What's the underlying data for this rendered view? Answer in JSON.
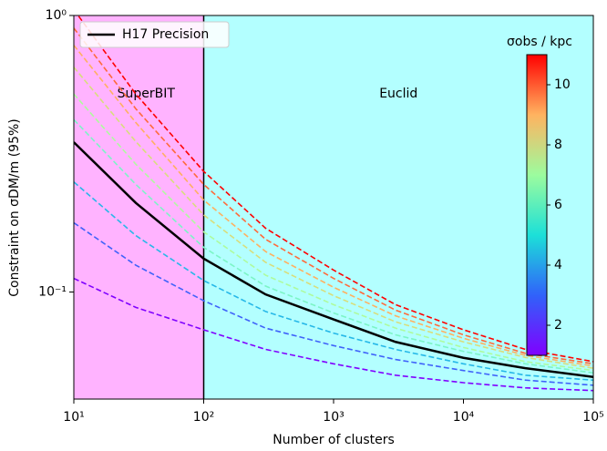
{
  "chart_data": {
    "type": "line",
    "xlabel": "Number of clusters",
    "ylabel": "Constraint on σDM/m (95%)",
    "x": [
      10,
      30,
      100,
      300,
      1000,
      3000,
      10000,
      30000,
      100000
    ],
    "xlog": true,
    "ylog": true,
    "xlim": [
      10,
      100000
    ],
    "ylim": [
      0.041,
      1
    ],
    "xticks": [
      {
        "value": 10,
        "label": "10¹"
      },
      {
        "value": 100,
        "label": "10²"
      },
      {
        "value": 1000,
        "label": "10³"
      },
      {
        "value": 10000,
        "label": "10⁴"
      },
      {
        "value": 100000,
        "label": "10⁵"
      }
    ],
    "yticks": [
      {
        "value": 0.1,
        "label": "10⁻¹"
      },
      {
        "value": 1,
        "label": "10⁰"
      }
    ],
    "regions": [
      {
        "label": "SuperBIT",
        "x": [
          10,
          100
        ],
        "color": "#ffb3ff"
      },
      {
        "label": "Euclid",
        "x": [
          100,
          100000
        ],
        "color": "#b3ffff"
      }
    ],
    "vline": 100,
    "legend": "upper left",
    "series": [
      {
        "color": "#8000ff",
        "style": "dashed",
        "values": [
          0.112,
          0.088,
          0.073,
          0.062,
          0.055,
          0.05,
          0.047,
          0.045,
          0.044
        ]
      },
      {
        "color": "#3f62fa",
        "style": "dashed",
        "values": [
          0.178,
          0.125,
          0.093,
          0.074,
          0.064,
          0.057,
          0.052,
          0.048,
          0.046
        ]
      },
      {
        "color": "#26b8e8",
        "style": "dashed",
        "values": [
          0.25,
          0.16,
          0.11,
          0.085,
          0.071,
          0.062,
          0.055,
          0.05,
          0.048
        ]
      },
      {
        "color": "#7cf5c6",
        "style": "dashed",
        "values": [
          0.42,
          0.245,
          0.145,
          0.105,
          0.084,
          0.07,
          0.061,
          0.055,
          0.051
        ]
      },
      {
        "color": "#aefb9e",
        "style": "dashed",
        "values": [
          0.52,
          0.29,
          0.165,
          0.115,
          0.09,
          0.074,
          0.063,
          0.056,
          0.052
        ]
      },
      {
        "color": "#d8de7c",
        "style": "dashed",
        "values": [
          0.65,
          0.35,
          0.19,
          0.128,
          0.097,
          0.078,
          0.066,
          0.058,
          0.053
        ]
      },
      {
        "color": "#ffb060",
        "style": "dashed",
        "values": [
          0.78,
          0.41,
          0.215,
          0.14,
          0.104,
          0.082,
          0.068,
          0.059,
          0.054
        ]
      },
      {
        "color": "#ff6a3a",
        "style": "dashed",
        "values": [
          0.9,
          0.46,
          0.245,
          0.155,
          0.112,
          0.086,
          0.07,
          0.06,
          0.055
        ]
      },
      {
        "color": "#ff0000",
        "style": "dashed",
        "values": [
          1.05,
          0.52,
          0.273,
          0.17,
          0.12,
          0.09,
          0.073,
          0.062,
          0.056
        ]
      },
      {
        "name": "H17 Precision",
        "color": "#000000",
        "style": "solid",
        "values": [
          0.348,
          0.21,
          0.132,
          0.098,
          0.0796,
          0.066,
          0.0578,
          0.053,
          0.0493
        ]
      }
    ],
    "colorbar": {
      "title": "σobs / kpc",
      "colormap": "rainbow",
      "lim": [
        1,
        11
      ],
      "ticks": [
        2,
        4,
        6,
        8,
        10
      ]
    }
  }
}
